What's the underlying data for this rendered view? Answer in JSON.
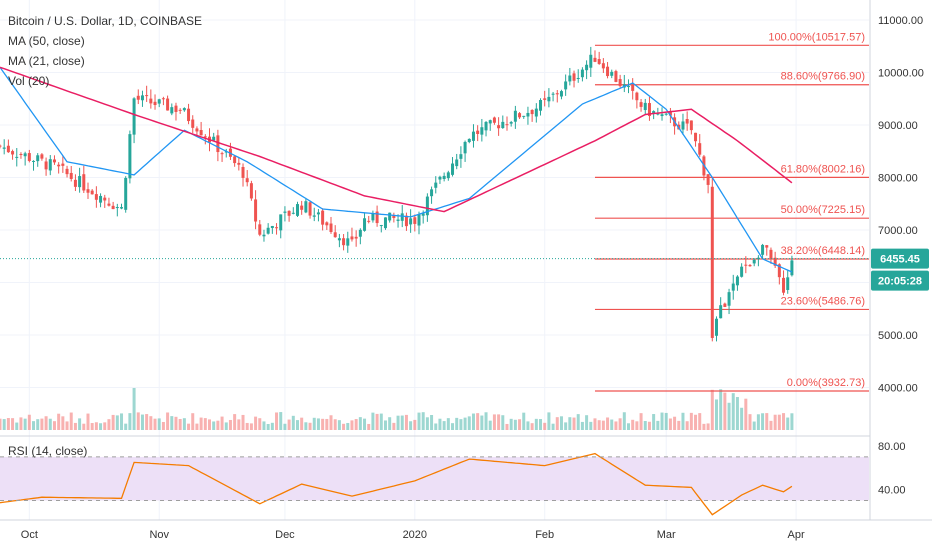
{
  "header": {
    "title": "Bitcoin / U.S. Dollar, 1D, COINBASE",
    "indicators": [
      "MA (50, close)",
      "MA (21, close)",
      "Vol (20)"
    ]
  },
  "rsi_label": "RSI (14, close)",
  "price_tag": "6455.45",
  "countdown_tag": "20:05:28",
  "colors": {
    "up": "#26a69a",
    "down": "#ef5350",
    "ma_blue": "#2196f3",
    "ma_pink": "#e91e63",
    "fib": "#ef5350",
    "rsi_line": "#f57c00",
    "rsi_band": "#ede0f7",
    "tag_bg": "#26a69a"
  },
  "chart_data": {
    "type": "candlestick",
    "title": "Bitcoin / U.S. Dollar, 1D, COINBASE",
    "price_axis_ticks": [
      "11000.00",
      "10000.00",
      "9000.00",
      "8000.00",
      "7000.00",
      "6000.00",
      "5000.00",
      "4000.00"
    ],
    "rsi_axis_ticks": [
      "80.00",
      "40.00"
    ],
    "x_ticks": [
      "Oct",
      "Nov",
      "Dec",
      "2020",
      "Feb",
      "Mar",
      "Apr"
    ],
    "ylim_price": [
      3500,
      11500
    ],
    "rsi_levels": [
      70,
      30
    ],
    "last_price": 6455.45,
    "fibonacci": [
      {
        "label": "100.00%(10517.57)",
        "price": 10517.57
      },
      {
        "label": "88.60%(9766.90)",
        "price": 9766.9
      },
      {
        "label": "61.80%(8002.16)",
        "price": 8002.16
      },
      {
        "label": "50.00%(7225.15)",
        "price": 7225.15
      },
      {
        "label": "38.20%(6448.14)",
        "price": 6448.14
      },
      {
        "label": "23.60%(5486.76)",
        "price": 5486.76
      },
      {
        "label": "0.00%(3932.73)",
        "price": 3932.73
      }
    ],
    "close_anchors": [
      {
        "date": "2019-09-24",
        "price": 8600
      },
      {
        "date": "2019-10-07",
        "price": 8200
      },
      {
        "date": "2019-10-23",
        "price": 7400
      },
      {
        "date": "2019-10-26",
        "price": 9500
      },
      {
        "date": "2019-11-06",
        "price": 9300
      },
      {
        "date": "2019-11-21",
        "price": 8100
      },
      {
        "date": "2019-11-25",
        "price": 6900
      },
      {
        "date": "2019-12-05",
        "price": 7500
      },
      {
        "date": "2019-12-17",
        "price": 6700
      },
      {
        "date": "2019-12-20",
        "price": 7200
      },
      {
        "date": "2020-01-01",
        "price": 7200
      },
      {
        "date": "2020-01-14",
        "price": 8800
      },
      {
        "date": "2020-02-01",
        "price": 9400
      },
      {
        "date": "2020-02-13",
        "price": 10300
      },
      {
        "date": "2020-02-25",
        "price": 9300
      },
      {
        "date": "2020-03-07",
        "price": 8900
      },
      {
        "date": "2020-03-11",
        "price": 7900
      },
      {
        "date": "2020-03-12",
        "price": 4900
      },
      {
        "date": "2020-03-13",
        "price": 5300
      },
      {
        "date": "2020-03-19",
        "price": 6200
      },
      {
        "date": "2020-03-24",
        "price": 6700
      },
      {
        "date": "2020-03-29",
        "price": 5900
      },
      {
        "date": "2020-03-31",
        "price": 6455
      }
    ],
    "ma21_anchors": [
      {
        "date": "2019-09-24",
        "price": 10100
      },
      {
        "date": "2019-10-10",
        "price": 8300
      },
      {
        "date": "2019-10-26",
        "price": 8050
      },
      {
        "date": "2019-11-07",
        "price": 8900
      },
      {
        "date": "2019-11-22",
        "price": 8300
      },
      {
        "date": "2019-12-10",
        "price": 7400
      },
      {
        "date": "2019-12-31",
        "price": 7250
      },
      {
        "date": "2020-01-14",
        "price": 7600
      },
      {
        "date": "2020-02-10",
        "price": 9400
      },
      {
        "date": "2020-02-22",
        "price": 9800
      },
      {
        "date": "2020-03-01",
        "price": 9300
      },
      {
        "date": "2020-03-12",
        "price": 8000
      },
      {
        "date": "2020-03-24",
        "price": 6450
      },
      {
        "date": "2020-03-31",
        "price": 6200
      }
    ],
    "ma50_anchors": [
      {
        "date": "2019-09-24",
        "price": 10100
      },
      {
        "date": "2019-10-26",
        "price": 9200
      },
      {
        "date": "2019-11-25",
        "price": 8400
      },
      {
        "date": "2019-12-20",
        "price": 7650
      },
      {
        "date": "2020-01-08",
        "price": 7350
      },
      {
        "date": "2020-02-13",
        "price": 8700
      },
      {
        "date": "2020-02-25",
        "price": 9200
      },
      {
        "date": "2020-03-07",
        "price": 9300
      },
      {
        "date": "2020-03-18",
        "price": 8700
      },
      {
        "date": "2020-03-31",
        "price": 7900
      }
    ],
    "rsi_anchors": [
      {
        "date": "2019-09-24",
        "value": 28
      },
      {
        "date": "2019-10-04",
        "value": 33
      },
      {
        "date": "2019-10-23",
        "value": 32
      },
      {
        "date": "2019-10-26",
        "value": 65
      },
      {
        "date": "2019-11-08",
        "value": 62
      },
      {
        "date": "2019-11-25",
        "value": 27
      },
      {
        "date": "2019-12-05",
        "value": 45
      },
      {
        "date": "2019-12-17",
        "value": 34
      },
      {
        "date": "2020-01-01",
        "value": 48
      },
      {
        "date": "2020-01-14",
        "value": 68
      },
      {
        "date": "2020-02-01",
        "value": 62
      },
      {
        "date": "2020-02-13",
        "value": 73
      },
      {
        "date": "2020-02-25",
        "value": 44
      },
      {
        "date": "2020-03-07",
        "value": 42
      },
      {
        "date": "2020-03-12",
        "value": 17
      },
      {
        "date": "2020-03-19",
        "value": 35
      },
      {
        "date": "2020-03-24",
        "value": 44
      },
      {
        "date": "2020-03-29",
        "value": 38
      },
      {
        "date": "2020-03-31",
        "value": 43
      }
    ],
    "volume_profile": "low baseline volume with spikes on 2019-10-26 and around 2020-03-12 to 2020-03-20"
  }
}
